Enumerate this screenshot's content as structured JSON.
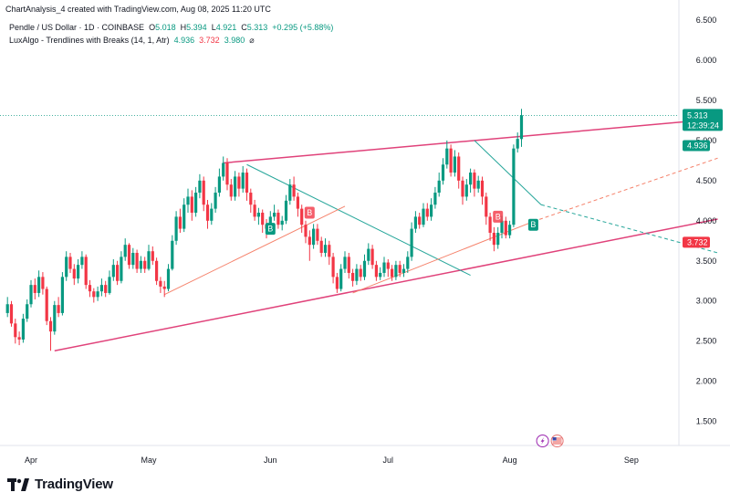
{
  "header": {
    "text": "ChartAnalysis_4 created with TradingView.com, Aug 08, 2025 11:20 UTC"
  },
  "legend": {
    "symbol": "Pendle / US Dollar · 1D · COINBASE",
    "o_label": "O",
    "o_value": "5.018",
    "h_label": "H",
    "h_value": "5.394",
    "l_label": "L",
    "l_value": "4.921",
    "c_label": "C",
    "c_value": "5.313",
    "change": "+0.295 (+5.88%)",
    "indicator": "LuxAlgo - Trendlines with Breaks (14, 1, Atr)",
    "ind_v1": "4.936",
    "ind_v2": "3.732",
    "ind_v3": "3.980",
    "ind_icon": "⌀"
  },
  "footer": {
    "brand": "TradingView",
    "logo_icon": "tradingview-logo-icon"
  },
  "colors": {
    "up": "#089981",
    "down": "#f23645",
    "channel": "#e0427a",
    "trend_down": "#26a69a",
    "trend_up": "#f5826b"
  },
  "chart_data": {
    "type": "candlestick",
    "title": "Pendle / US Dollar · 1D · COINBASE",
    "xlabel": "",
    "ylabel": "",
    "ylim": [
      1.2,
      6.75
    ],
    "y_ticks": [
      "6.500",
      "6.000",
      "5.500",
      "5.000",
      "4.500",
      "4.000",
      "3.500",
      "3.000",
      "2.500",
      "2.000",
      "1.500"
    ],
    "x_ticks": [
      {
        "label": "Apr",
        "day": 0
      },
      {
        "label": "May",
        "day": 30
      },
      {
        "label": "Jun",
        "day": 61
      },
      {
        "label": "Jul",
        "day": 91
      },
      {
        "label": "Aug",
        "day": 122
      },
      {
        "label": "Sep",
        "day": 153
      }
    ],
    "last_price": "5.313",
    "countdown": "12:39:24",
    "price_tags": [
      {
        "label": "4.936",
        "value": 4.936,
        "kind": "up"
      },
      {
        "label": "3.732",
        "value": 3.732,
        "kind": "down"
      }
    ],
    "break_labels": [
      {
        "label": "B",
        "day": 61,
        "value": 3.9,
        "kind": "up"
      },
      {
        "label": "B",
        "day": 71,
        "value": 4.1,
        "kind": "down"
      },
      {
        "label": "B",
        "day": 119,
        "value": 4.05,
        "kind": "down"
      },
      {
        "label": "B",
        "day": 128,
        "value": 3.95,
        "kind": "up"
      }
    ],
    "lines": [
      {
        "name": "channel-upper",
        "kind": "channel",
        "p1": [
          49,
          4.72
        ],
        "p2": [
          175,
          5.27
        ]
      },
      {
        "name": "channel-lower",
        "kind": "channel",
        "p1": [
          6,
          2.38
        ],
        "p2": [
          175,
          4.02
        ]
      },
      {
        "name": "downtrend-1",
        "kind": "trend_down",
        "p1": [
          55,
          4.7
        ],
        "p2": [
          112,
          3.32
        ]
      },
      {
        "name": "uptrend-1",
        "kind": "trend_up",
        "p1": [
          34,
          3.08
        ],
        "p2": [
          80,
          4.18
        ]
      },
      {
        "name": "downtrend-2",
        "kind": "trend_down",
        "p1": [
          113,
          5.0
        ],
        "p2": [
          130,
          4.2
        ],
        "ext": [
          175,
          3.6
        ]
      },
      {
        "name": "uptrend-2",
        "kind": "trend_up",
        "p1": [
          82,
          3.1
        ],
        "p2": [
          128,
          3.99
        ],
        "ext": [
          175,
          4.78
        ]
      }
    ],
    "candles": [
      [
        -6,
        2.85,
        2.96,
        3.05,
        2.8
      ],
      [
        -5,
        2.96,
        2.72,
        3.0,
        2.68
      ],
      [
        -4,
        2.72,
        2.55,
        2.78,
        2.47
      ],
      [
        -3,
        2.55,
        2.52,
        2.62,
        2.45
      ],
      [
        -2,
        2.52,
        2.78,
        2.84,
        2.48
      ],
      [
        -1,
        2.78,
        2.96,
        3.02,
        2.74
      ],
      [
        0,
        2.96,
        3.2,
        3.26,
        2.92
      ],
      [
        1,
        3.2,
        3.1,
        3.28,
        3.02
      ],
      [
        2,
        3.1,
        3.3,
        3.38,
        3.05
      ],
      [
        3,
        3.3,
        3.15,
        3.36,
        3.08
      ],
      [
        4,
        3.15,
        2.75,
        3.18,
        2.7
      ],
      [
        5,
        2.75,
        2.62,
        2.8,
        2.38
      ],
      [
        6,
        2.62,
        2.95,
        3.0,
        2.58
      ],
      [
        7,
        2.95,
        2.85,
        3.05,
        2.8
      ],
      [
        8,
        2.85,
        3.3,
        3.36,
        2.82
      ],
      [
        9,
        3.3,
        3.55,
        3.62,
        3.25
      ],
      [
        10,
        3.55,
        3.4,
        3.6,
        3.35
      ],
      [
        11,
        3.4,
        3.28,
        3.46,
        3.2
      ],
      [
        12,
        3.28,
        3.45,
        3.52,
        3.22
      ],
      [
        13,
        3.45,
        3.55,
        3.62,
        3.4
      ],
      [
        14,
        3.55,
        3.2,
        3.58,
        3.15
      ],
      [
        15,
        3.2,
        3.12,
        3.26,
        3.05
      ],
      [
        16,
        3.12,
        3.05,
        3.16,
        2.98
      ],
      [
        17,
        3.05,
        3.12,
        3.18,
        3.0
      ],
      [
        18,
        3.12,
        3.2,
        3.28,
        3.06
      ],
      [
        19,
        3.2,
        3.1,
        3.25,
        3.05
      ],
      [
        20,
        3.1,
        3.3,
        3.38,
        3.08
      ],
      [
        21,
        3.3,
        3.45,
        3.52,
        3.25
      ],
      [
        22,
        3.45,
        3.25,
        3.5,
        3.2
      ],
      [
        23,
        3.25,
        3.55,
        3.62,
        3.22
      ],
      [
        24,
        3.55,
        3.7,
        3.78,
        3.5
      ],
      [
        25,
        3.7,
        3.45,
        3.72,
        3.4
      ],
      [
        26,
        3.45,
        3.6,
        3.66,
        3.4
      ],
      [
        27,
        3.6,
        3.4,
        3.64,
        3.35
      ],
      [
        28,
        3.4,
        3.5,
        3.56,
        3.35
      ],
      [
        29,
        3.5,
        3.4,
        3.55,
        3.35
      ],
      [
        30,
        3.4,
        3.62,
        3.7,
        3.38
      ],
      [
        31,
        3.62,
        3.5,
        3.68,
        3.45
      ],
      [
        32,
        3.5,
        3.25,
        3.54,
        3.2
      ],
      [
        33,
        3.25,
        3.18,
        3.3,
        3.1
      ],
      [
        34,
        3.18,
        3.15,
        3.25,
        3.05
      ],
      [
        35,
        3.15,
        3.4,
        3.46,
        3.12
      ],
      [
        36,
        3.4,
        3.75,
        3.82,
        3.38
      ],
      [
        37,
        3.75,
        4.05,
        4.12,
        3.7
      ],
      [
        38,
        4.05,
        3.9,
        4.15,
        3.85
      ],
      [
        39,
        3.9,
        4.2,
        4.28,
        3.86
      ],
      [
        40,
        4.2,
        4.3,
        4.4,
        4.1
      ],
      [
        41,
        4.3,
        4.1,
        4.38,
        4.0
      ],
      [
        42,
        4.1,
        4.35,
        4.42,
        4.05
      ],
      [
        43,
        4.35,
        4.5,
        4.58,
        4.28
      ],
      [
        44,
        4.5,
        4.2,
        4.55,
        4.12
      ],
      [
        45,
        4.2,
        4.0,
        4.26,
        3.9
      ],
      [
        46,
        4.0,
        4.15,
        4.22,
        3.95
      ],
      [
        47,
        4.15,
        4.35,
        4.42,
        4.1
      ],
      [
        48,
        4.35,
        4.55,
        4.65,
        4.3
      ],
      [
        49,
        4.55,
        4.72,
        4.8,
        4.5
      ],
      [
        50,
        4.72,
        4.45,
        4.78,
        4.38
      ],
      [
        51,
        4.45,
        4.3,
        4.52,
        4.25
      ],
      [
        52,
        4.3,
        4.55,
        4.62,
        4.25
      ],
      [
        53,
        4.55,
        4.4,
        4.6,
        4.3
      ],
      [
        54,
        4.4,
        4.6,
        4.68,
        4.35
      ],
      [
        55,
        4.6,
        4.35,
        4.65,
        4.25
      ],
      [
        56,
        4.35,
        4.2,
        4.4,
        4.1
      ],
      [
        57,
        4.2,
        4.05,
        4.26,
        4.0
      ],
      [
        58,
        4.05,
        4.1,
        4.16,
        3.95
      ],
      [
        59,
        4.1,
        3.95,
        4.14,
        3.85
      ],
      [
        60,
        3.95,
        3.9,
        4.02,
        3.78
      ],
      [
        61,
        3.9,
        4.05,
        4.12,
        3.85
      ],
      [
        62,
        4.05,
        4.1,
        4.2,
        4.0
      ],
      [
        63,
        4.1,
        3.95,
        4.14,
        3.9
      ],
      [
        64,
        3.95,
        4.0,
        4.06,
        3.88
      ],
      [
        65,
        4.0,
        4.25,
        4.32,
        3.96
      ],
      [
        66,
        4.25,
        4.45,
        4.52,
        4.2
      ],
      [
        67,
        4.45,
        4.3,
        4.55,
        4.25
      ],
      [
        68,
        4.3,
        4.15,
        4.35,
        4.05
      ],
      [
        69,
        4.15,
        3.95,
        4.2,
        3.85
      ],
      [
        70,
        3.95,
        3.8,
        4.0,
        3.72
      ],
      [
        71,
        3.8,
        3.7,
        3.88,
        3.5
      ],
      [
        72,
        3.7,
        3.9,
        3.96,
        3.65
      ],
      [
        73,
        3.9,
        3.75,
        3.96,
        3.7
      ],
      [
        74,
        3.75,
        3.6,
        3.8,
        3.55
      ],
      [
        75,
        3.6,
        3.7,
        3.78,
        3.55
      ],
      [
        76,
        3.7,
        3.55,
        3.75,
        3.45
      ],
      [
        77,
        3.55,
        3.3,
        3.6,
        3.22
      ],
      [
        78,
        3.3,
        3.15,
        3.35,
        3.1
      ],
      [
        79,
        3.15,
        3.4,
        3.46,
        3.12
      ],
      [
        80,
        3.4,
        3.55,
        3.62,
        3.35
      ],
      [
        81,
        3.55,
        3.35,
        3.6,
        3.28
      ],
      [
        82,
        3.35,
        3.25,
        3.4,
        3.18
      ],
      [
        83,
        3.25,
        3.4,
        3.46,
        3.2
      ],
      [
        84,
        3.4,
        3.3,
        3.45,
        3.25
      ],
      [
        85,
        3.3,
        3.5,
        3.58,
        3.26
      ],
      [
        86,
        3.5,
        3.65,
        3.72,
        3.45
      ],
      [
        87,
        3.65,
        3.45,
        3.7,
        3.4
      ],
      [
        88,
        3.45,
        3.3,
        3.5,
        3.25
      ],
      [
        89,
        3.3,
        3.35,
        3.42,
        3.26
      ],
      [
        90,
        3.35,
        3.48,
        3.55,
        3.3
      ],
      [
        91,
        3.48,
        3.4,
        3.52,
        3.3
      ],
      [
        92,
        3.4,
        3.3,
        3.45,
        3.25
      ],
      [
        93,
        3.3,
        3.45,
        3.5,
        3.26
      ],
      [
        94,
        3.45,
        3.35,
        3.5,
        3.3
      ],
      [
        95,
        3.35,
        3.4,
        3.46,
        3.3
      ],
      [
        96,
        3.4,
        3.55,
        3.62,
        3.35
      ],
      [
        97,
        3.55,
        3.9,
        3.98,
        3.5
      ],
      [
        98,
        3.9,
        4.05,
        4.12,
        3.85
      ],
      [
        99,
        4.05,
        3.95,
        4.1,
        3.9
      ],
      [
        100,
        3.95,
        4.15,
        4.22,
        3.92
      ],
      [
        101,
        4.15,
        4.05,
        4.22,
        4.0
      ],
      [
        102,
        4.05,
        4.2,
        4.28,
        4.0
      ],
      [
        103,
        4.2,
        4.35,
        4.42,
        4.15
      ],
      [
        104,
        4.35,
        4.5,
        4.6,
        4.3
      ],
      [
        105,
        4.5,
        4.7,
        4.78,
        4.45
      ],
      [
        106,
        4.7,
        4.9,
        5.0,
        4.65
      ],
      [
        107,
        4.9,
        4.6,
        4.95,
        4.55
      ],
      [
        108,
        4.6,
        4.8,
        4.88,
        4.55
      ],
      [
        109,
        4.8,
        4.5,
        4.85,
        4.4
      ],
      [
        110,
        4.5,
        4.3,
        4.55,
        4.2
      ],
      [
        111,
        4.3,
        4.45,
        4.52,
        4.25
      ],
      [
        112,
        4.45,
        4.6,
        4.65,
        4.35
      ],
      [
        113,
        4.6,
        4.4,
        4.64,
        4.3
      ],
      [
        114,
        4.4,
        4.5,
        4.56,
        4.35
      ],
      [
        115,
        4.5,
        4.3,
        4.55,
        4.2
      ],
      [
        116,
        4.3,
        4.05,
        4.35,
        3.95
      ],
      [
        117,
        4.05,
        3.85,
        4.1,
        3.75
      ],
      [
        118,
        3.85,
        3.7,
        3.92,
        3.62
      ],
      [
        119,
        3.7,
        3.85,
        3.92,
        3.65
      ],
      [
        120,
        3.85,
        4.0,
        4.06,
        3.78
      ],
      [
        121,
        4.0,
        3.82,
        4.05,
        3.78
      ],
      [
        122,
        3.82,
        3.95,
        4.0,
        3.78
      ],
      [
        123,
        3.95,
        4.9,
        4.95,
        3.92
      ],
      [
        124,
        4.9,
        5.02,
        5.1,
        4.85
      ],
      [
        125,
        5.018,
        5.313,
        5.394,
        4.921
      ]
    ]
  }
}
